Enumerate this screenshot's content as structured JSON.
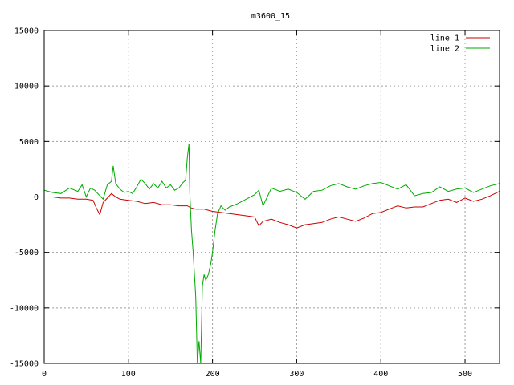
{
  "chart_data": {
    "type": "line",
    "title": "m3600_15",
    "xlabel": "",
    "ylabel": "",
    "xlim": [
      0,
      541
    ],
    "ylim": [
      -15000,
      15000
    ],
    "x_ticks": [
      0,
      100,
      200,
      300,
      400,
      500
    ],
    "y_ticks": [
      -15000,
      -10000,
      -5000,
      0,
      5000,
      10000,
      15000
    ],
    "grid": true,
    "legend_position": "top-right",
    "series": [
      {
        "name": "line 1",
        "color": "#cc0000",
        "x": [
          0,
          10,
          20,
          30,
          40,
          50,
          58,
          62,
          66,
          70,
          75,
          80,
          85,
          90,
          100,
          110,
          120,
          130,
          140,
          150,
          160,
          170,
          175,
          180,
          190,
          200,
          210,
          220,
          230,
          240,
          250,
          255,
          260,
          270,
          280,
          290,
          300,
          310,
          320,
          330,
          340,
          350,
          360,
          370,
          380,
          390,
          400,
          410,
          420,
          430,
          440,
          450,
          460,
          470,
          480,
          490,
          500,
          510,
          520,
          530,
          541
        ],
        "y": [
          0,
          0,
          -100,
          -100,
          -200,
          -200,
          -300,
          -1000,
          -1600,
          -500,
          -100,
          300,
          0,
          -200,
          -300,
          -400,
          -600,
          -500,
          -700,
          -700,
          -800,
          -800,
          -1000,
          -1100,
          -1100,
          -1300,
          -1400,
          -1500,
          -1600,
          -1700,
          -1800,
          -2600,
          -2200,
          -2000,
          -2300,
          -2500,
          -2800,
          -2500,
          -2400,
          -2300,
          -2000,
          -1800,
          -2000,
          -2200,
          -1900,
          -1500,
          -1400,
          -1100,
          -800,
          -1000,
          -900,
          -900,
          -600,
          -300,
          -200,
          -500,
          -100,
          -400,
          -200,
          100,
          500
        ]
      },
      {
        "name": "line 2",
        "color": "#00aa00",
        "x": [
          0,
          10,
          20,
          30,
          40,
          45,
          50,
          55,
          60,
          65,
          70,
          75,
          80,
          82,
          85,
          90,
          95,
          100,
          105,
          110,
          115,
          120,
          125,
          130,
          135,
          140,
          145,
          150,
          155,
          160,
          165,
          168,
          170,
          172,
          173,
          175,
          177,
          180,
          182,
          184,
          186,
          188,
          190,
          192,
          195,
          198,
          200,
          203,
          206,
          210,
          215,
          220,
          230,
          240,
          250,
          255,
          260,
          270,
          280,
          290,
          300,
          310,
          320,
          330,
          340,
          350,
          360,
          370,
          380,
          390,
          400,
          410,
          420,
          430,
          440,
          450,
          460,
          470,
          480,
          490,
          500,
          510,
          520,
          530,
          541
        ],
        "y": [
          600,
          400,
          300,
          800,
          500,
          1100,
          0,
          800,
          600,
          200,
          -200,
          1100,
          1400,
          2800,
          1200,
          700,
          400,
          500,
          300,
          900,
          1600,
          1200,
          700,
          1200,
          800,
          1400,
          800,
          1100,
          600,
          800,
          1300,
          1500,
          3500,
          4800,
          400,
          -3000,
          -5000,
          -9000,
          -15000,
          -13000,
          -15000,
          -8000,
          -7000,
          -7500,
          -7000,
          -6000,
          -5000,
          -3000,
          -1500,
          -800,
          -1200,
          -900,
          -600,
          -200,
          200,
          600,
          -800,
          800,
          500,
          700,
          400,
          -200,
          500,
          600,
          1000,
          1200,
          900,
          700,
          1000,
          1200,
          1300,
          1000,
          700,
          1100,
          100,
          300,
          400,
          900,
          500,
          700,
          800,
          400,
          700,
          1000,
          1200
        ]
      }
    ]
  }
}
